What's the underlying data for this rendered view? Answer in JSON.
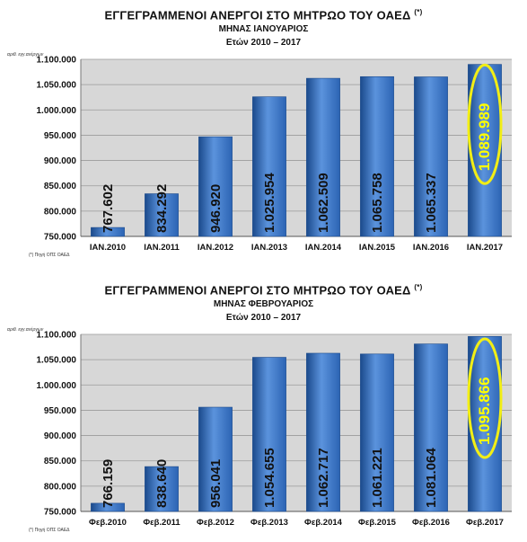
{
  "colors": {
    "bar": "#2c64b4",
    "bar_light": "#5b93dd",
    "bar_dark": "#1b4a8c",
    "plot_bg": "#d7d7d7",
    "highlight": "#f2ee15"
  },
  "chart_data": [
    {
      "type": "bar",
      "title": "ΕΓΓΕΓΡΑΜΜΕΝΟΙ ΑΝΕΡΓΟΙ ΣΤΟ ΜΗΤΡΩΟ ΤΟΥ ΟΑΕΔ",
      "title_sup": "(*)",
      "subtitle": "ΜΗΝΑΣ ΙΑΝΟΥΑΡΙΟΣ",
      "subtitle2": "Ετών 2010 – 2017",
      "ylabel": "αριθ. εγγ.ανέργων",
      "footnote": "(*) Πηγή ΟΠΣ ΟΑΕΔ",
      "categories": [
        "ΙΑΝ.2010",
        "ΙΑΝ.2011",
        "ΙΑΝ.2012",
        "ΙΑΝ.2013",
        "ΙΑΝ.2014",
        "ΙΑΝ.2015",
        "ΙΑΝ.2016",
        "ΙΑΝ.2017"
      ],
      "values": [
        767602,
        834292,
        946920,
        1025954,
        1062509,
        1065758,
        1065337,
        1089989
      ],
      "value_labels": [
        "767.602",
        "834.292",
        "946.920",
        "1.025.954",
        "1.062.509",
        "1.065.758",
        "1.065.337",
        "1.089.989"
      ],
      "ylim": [
        750000,
        1100000
      ],
      "yticks": [
        750000,
        800000,
        850000,
        900000,
        950000,
        1000000,
        1050000,
        1100000
      ],
      "ytick_labels": [
        "750.000",
        "800.000",
        "850.000",
        "900.000",
        "950.000",
        "1.000.000",
        "1.050.000",
        "1.100.000"
      ],
      "highlight_index": 7,
      "grid": true
    },
    {
      "type": "bar",
      "title": "ΕΓΓΕΓΡΑΜΜΕΝΟΙ ΑΝΕΡΓΟΙ ΣΤΟ ΜΗΤΡΩΟ ΤΟΥ ΟΑΕΔ",
      "title_sup": "(*)",
      "subtitle": "ΜΗΝΑΣ ΦΕΒΡΟΥΑΡΙΟΣ",
      "subtitle2": "Ετών 2010 – 2017",
      "ylabel": "αριθ. εγγ.ανέργων",
      "footnote": "(*) Πηγή ΟΠΣ ΟΑΕΔ",
      "categories": [
        "Φεβ.2010",
        "Φεβ.2011",
        "Φεβ.2012",
        "Φεβ.2013",
        "Φεβ.2014",
        "Φεβ.2015",
        "Φεβ.2016",
        "Φεβ.2017"
      ],
      "values": [
        766159,
        838640,
        956041,
        1054655,
        1062717,
        1061221,
        1081064,
        1095866
      ],
      "value_labels": [
        "766.159",
        "838.640",
        "956.041",
        "1.054.655",
        "1.062.717",
        "1.061.221",
        "1.081.064",
        "1.095.866"
      ],
      "ylim": [
        750000,
        1100000
      ],
      "yticks": [
        750000,
        800000,
        850000,
        900000,
        950000,
        1000000,
        1050000,
        1100000
      ],
      "ytick_labels": [
        "750.000",
        "800.000",
        "850.000",
        "900.000",
        "950.000",
        "1.000.000",
        "1.050.000",
        "1.100.000"
      ],
      "highlight_index": 7,
      "grid": true
    }
  ]
}
